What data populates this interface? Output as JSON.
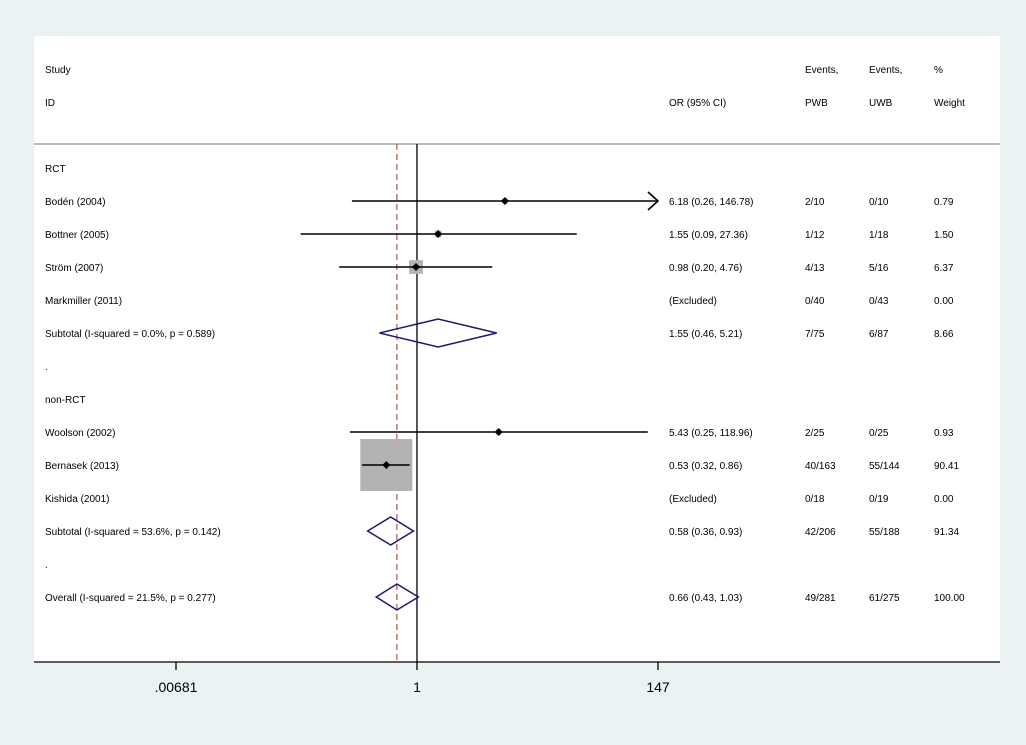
{
  "colors": {
    "outer_background": "#eaf2f3",
    "plot_background": "#ffffff",
    "diamond": "#1a1a6e",
    "weight_box": "#b3b3b3",
    "overall_reference_line": "#a0302e",
    "line": "#000000"
  },
  "chart_data": {
    "type": "forest",
    "scale": "log",
    "xlim": [
      0.00681,
      147
    ],
    "null_line": 1,
    "overall_or": 0.66,
    "grid": false,
    "header": {
      "study": "Study",
      "id": "ID",
      "or_ci": "OR (95% CI)",
      "events1_line1": "Events,",
      "events1_line2": "PWB",
      "events2_line1": "Events,",
      "events2_line2": "UWB",
      "weight_line1": "%",
      "weight_line2": "Weight"
    },
    "x_ticks": [
      {
        "value": 0.00681,
        "label": ".00681"
      },
      {
        "value": 1,
        "label": "1"
      },
      {
        "value": 147,
        "label": "147"
      }
    ],
    "rows": [
      {
        "kind": "group",
        "label": "RCT"
      },
      {
        "kind": "study",
        "label": "Bodén (2004)",
        "or": 6.18,
        "lo": 0.26,
        "hi": 146.78,
        "text": "6.18 (0.26, 146.78)",
        "pwb": "2/10",
        "uwb": "0/10",
        "weight": "0.79",
        "arrow_right": true
      },
      {
        "kind": "study",
        "label": "Bottner (2005)",
        "or": 1.55,
        "lo": 0.09,
        "hi": 27.36,
        "text": "1.55 (0.09, 27.36)",
        "pwb": "1/12",
        "uwb": "1/18",
        "weight": "1.50"
      },
      {
        "kind": "study",
        "label": "Ström (2007)",
        "or": 0.98,
        "lo": 0.2,
        "hi": 4.76,
        "text": "0.98 (0.20, 4.76)",
        "pwb": "4/13",
        "uwb": "5/16",
        "weight": "6.37"
      },
      {
        "kind": "excluded",
        "label": "Markmiller (2011)",
        "text": "(Excluded)",
        "pwb": "0/40",
        "uwb": "0/43",
        "weight": "0.00"
      },
      {
        "kind": "subtotal",
        "label": "Subtotal  (I-squared = 0.0%, p = 0.589)",
        "or": 1.55,
        "lo": 0.46,
        "hi": 5.21,
        "text": "1.55 (0.46, 5.21)",
        "pwb": "7/75",
        "uwb": "6/87",
        "weight": "8.66"
      },
      {
        "kind": "spacer",
        "label": "."
      },
      {
        "kind": "group",
        "label": "non-RCT"
      },
      {
        "kind": "study",
        "label": "Woolson (2002)",
        "or": 5.43,
        "lo": 0.25,
        "hi": 118.96,
        "text": "5.43 (0.25, 118.96)",
        "pwb": "2/25",
        "uwb": "0/25",
        "weight": "0.93"
      },
      {
        "kind": "study",
        "label": "Bernasek (2013)",
        "or": 0.53,
        "lo": 0.32,
        "hi": 0.86,
        "text": "0.53 (0.32, 0.86)",
        "pwb": "40/163",
        "uwb": "55/144",
        "weight": "90.41"
      },
      {
        "kind": "excluded",
        "label": "Kishida (2001)",
        "text": "(Excluded)",
        "pwb": "0/18",
        "uwb": "0/19",
        "weight": "0.00"
      },
      {
        "kind": "subtotal",
        "label": "Subtotal  (I-squared = 53.6%, p = 0.142)",
        "or": 0.58,
        "lo": 0.36,
        "hi": 0.93,
        "text": "0.58 (0.36, 0.93)",
        "pwb": "42/206",
        "uwb": "55/188",
        "weight": "91.34"
      },
      {
        "kind": "spacer",
        "label": "."
      },
      {
        "kind": "overall",
        "label": "Overall  (I-squared = 21.5%, p = 0.277)",
        "or": 0.66,
        "lo": 0.43,
        "hi": 1.03,
        "text": "0.66 (0.43, 1.03)",
        "pwb": "49/281",
        "uwb": "61/275",
        "weight": "100.00"
      }
    ]
  }
}
